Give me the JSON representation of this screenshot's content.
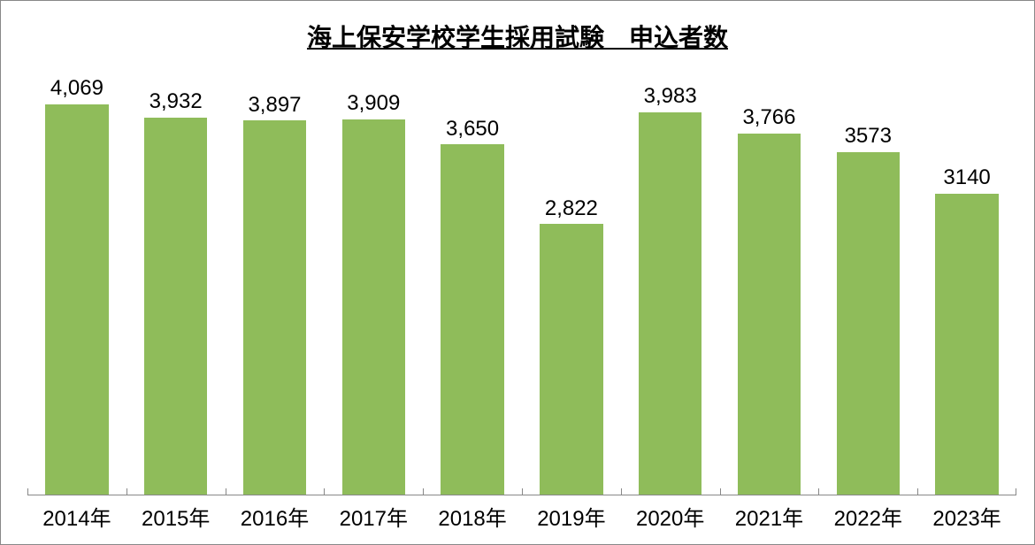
{
  "chart": {
    "type": "bar",
    "title": "海上保安学校学生採用試験　申込者数",
    "title_fontsize": 28,
    "title_color": "#000000",
    "title_underline": true,
    "background_color": "#ffffff",
    "border_color": "#888888",
    "bar_color": "#8fbc5a",
    "label_fontsize": 24,
    "label_color": "#000000",
    "x_label_fontsize": 24,
    "x_label_color": "#000000",
    "y_max": 4500,
    "y_min": 0,
    "bar_width_pct": 64,
    "categories": [
      "2014年",
      "2015年",
      "2016年",
      "2017年",
      "2018年",
      "2019年",
      "2020年",
      "2021年",
      "2022年",
      "2023年"
    ],
    "values": [
      4069,
      3932,
      3897,
      3909,
      3650,
      2822,
      3983,
      3766,
      3573,
      3140
    ],
    "value_labels": [
      "4,069",
      "3,932",
      "3,897",
      "3,909",
      "3,650",
      "2,822",
      "3,983",
      "3,766",
      "3573",
      "3140"
    ]
  }
}
